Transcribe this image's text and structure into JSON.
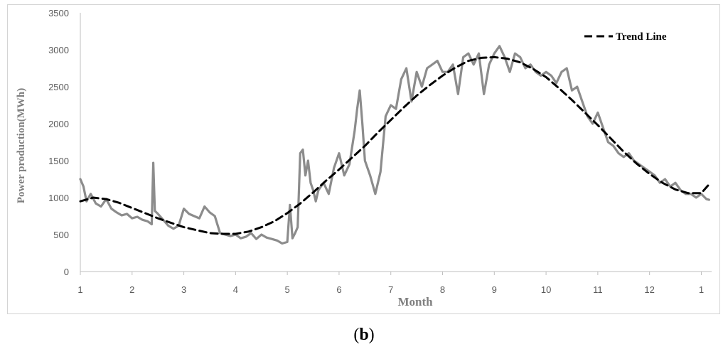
{
  "chart_data": {
    "type": "line",
    "xlabel": "Month",
    "ylabel": "Power production(MWh)",
    "x_ticks": [
      "1",
      "2",
      "3",
      "4",
      "5",
      "6",
      "7",
      "8",
      "9",
      "10",
      "11",
      "12",
      "1"
    ],
    "y_ticks": [
      "0",
      "500",
      "1000",
      "1500",
      "2000",
      "2500",
      "3000",
      "3500"
    ],
    "ylim": [
      0,
      3500
    ],
    "xlim": [
      1,
      13.2
    ],
    "grid": false,
    "legend_position": "top-right",
    "series": [
      {
        "color": "#8c8c8c",
        "x": [
          1.0,
          1.06,
          1.12,
          1.2,
          1.3,
          1.4,
          1.5,
          1.6,
          1.7,
          1.8,
          1.9,
          2.0,
          2.1,
          2.2,
          2.3,
          2.38,
          2.41,
          2.44,
          2.5,
          2.6,
          2.7,
          2.8,
          2.9,
          3.0,
          3.1,
          3.2,
          3.3,
          3.4,
          3.5,
          3.6,
          3.7,
          3.8,
          3.9,
          4.0,
          4.1,
          4.2,
          4.3,
          4.4,
          4.5,
          4.6,
          4.7,
          4.8,
          4.9,
          5.0,
          5.05,
          5.1,
          5.15,
          5.2,
          5.25,
          5.3,
          5.35,
          5.4,
          5.45,
          5.5,
          5.55,
          5.6,
          5.7,
          5.8,
          5.9,
          6.0,
          6.1,
          6.2,
          6.3,
          6.35,
          6.4,
          6.45,
          6.5,
          6.6,
          6.7,
          6.8,
          6.9,
          7.0,
          7.1,
          7.2,
          7.3,
          7.4,
          7.5,
          7.6,
          7.7,
          7.8,
          7.9,
          8.0,
          8.1,
          8.2,
          8.3,
          8.4,
          8.5,
          8.6,
          8.7,
          8.8,
          8.9,
          9.0,
          9.1,
          9.2,
          9.3,
          9.4,
          9.5,
          9.6,
          9.7,
          9.8,
          9.9,
          10.0,
          10.1,
          10.2,
          10.3,
          10.4,
          10.5,
          10.6,
          10.7,
          10.8,
          10.9,
          11.0,
          11.1,
          11.2,
          11.3,
          11.4,
          11.5,
          11.6,
          11.7,
          11.8,
          11.9,
          12.0,
          12.1,
          12.2,
          12.3,
          12.4,
          12.5,
          12.6,
          12.7,
          12.8,
          12.9,
          13.0,
          13.1,
          13.15
        ],
        "values": [
          1250,
          1150,
          950,
          1050,
          920,
          880,
          980,
          850,
          800,
          760,
          780,
          720,
          740,
          700,
          680,
          640,
          1470,
          820,
          780,
          700,
          620,
          580,
          620,
          850,
          780,
          750,
          720,
          880,
          800,
          750,
          520,
          500,
          480,
          500,
          450,
          470,
          520,
          440,
          500,
          460,
          440,
          420,
          380,
          400,
          900,
          450,
          520,
          600,
          1600,
          1650,
          1300,
          1500,
          1200,
          1100,
          950,
          1100,
          1200,
          1050,
          1400,
          1600,
          1300,
          1450,
          1900,
          2200,
          2450,
          2000,
          1500,
          1300,
          1050,
          1350,
          2100,
          2250,
          2200,
          2600,
          2750,
          2300,
          2700,
          2500,
          2750,
          2800,
          2850,
          2700,
          2700,
          2800,
          2400,
          2900,
          2950,
          2800,
          2950,
          2400,
          2800,
          2950,
          3050,
          2900,
          2700,
          2950,
          2900,
          2750,
          2800,
          2700,
          2650,
          2700,
          2650,
          2550,
          2700,
          2750,
          2450,
          2500,
          2300,
          2100,
          2000,
          2150,
          1950,
          1750,
          1700,
          1600,
          1550,
          1600,
          1500,
          1450,
          1400,
          1350,
          1300,
          1200,
          1250,
          1150,
          1200,
          1100,
          1050,
          1050,
          1000,
          1050,
          980,
          970
        ]
      },
      {
        "name": "Trend Line",
        "color": "#000000",
        "dashed": true,
        "x": [
          1.0,
          1.25,
          1.5,
          1.75,
          2.0,
          2.25,
          2.5,
          2.75,
          3.0,
          3.25,
          3.5,
          3.75,
          4.0,
          4.25,
          4.5,
          4.75,
          5.0,
          5.25,
          5.5,
          5.75,
          6.0,
          6.25,
          6.5,
          6.75,
          7.0,
          7.25,
          7.5,
          7.75,
          8.0,
          8.25,
          8.5,
          8.75,
          9.0,
          9.25,
          9.5,
          9.75,
          10.0,
          10.25,
          10.5,
          10.75,
          11.0,
          11.25,
          11.5,
          11.75,
          12.0,
          12.25,
          12.5,
          12.75,
          13.0,
          13.15
        ],
        "values": [
          950,
          1000,
          980,
          930,
          860,
          790,
          720,
          660,
          600,
          560,
          520,
          510,
          510,
          540,
          600,
          680,
          790,
          920,
          1070,
          1230,
          1380,
          1540,
          1700,
          1880,
          2050,
          2220,
          2380,
          2520,
          2650,
          2760,
          2850,
          2890,
          2900,
          2880,
          2830,
          2740,
          2630,
          2480,
          2320,
          2150,
          1980,
          1800,
          1620,
          1460,
          1320,
          1200,
          1110,
          1060,
          1060,
          1180
        ]
      }
    ]
  },
  "panel_label": "(b)",
  "panel_label_parts": {
    "open": "(",
    "letter": "b",
    "close": ")"
  }
}
